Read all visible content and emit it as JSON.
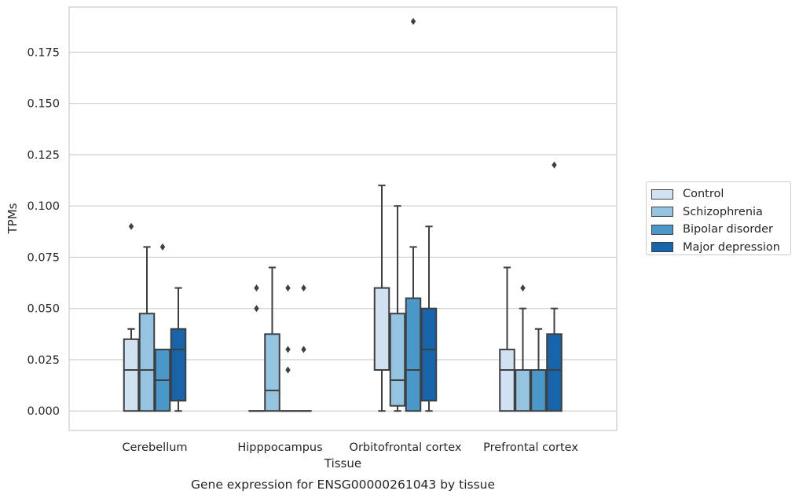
{
  "chart_data": {
    "type": "box",
    "caption": "Gene expression for ENSG00000261043 by tissue",
    "xlabel": "Tissue",
    "ylabel": "TPMs",
    "ylim": [
      -0.0095,
      0.197
    ],
    "yticks": [
      0.0,
      0.025,
      0.05,
      0.075,
      0.1,
      0.125,
      0.15,
      0.175
    ],
    "ytick_labels": [
      "0.000",
      "0.025",
      "0.050",
      "0.075",
      "0.100",
      "0.125",
      "0.150",
      "0.175"
    ],
    "grid": "horizontal",
    "legend_position": "right",
    "categories": [
      "Cerebellum",
      "Hipppocampus",
      "Orbitofrontal cortex",
      "Prefrontal cortex"
    ],
    "series": [
      {
        "name": "Control",
        "color": "#d0e1f2",
        "boxes": [
          {
            "whislo": 0.0,
            "q1": 0.0,
            "med": 0.02,
            "q3": 0.035,
            "whishi": 0.04,
            "fliers": [
              0.09
            ]
          },
          {
            "whislo": 0.0,
            "q1": 0.0,
            "med": 0.0,
            "q3": 0.0,
            "whishi": 0.0,
            "fliers": [
              0.05,
              0.06
            ]
          },
          {
            "whislo": 0.0,
            "q1": 0.02,
            "med": 0.02,
            "q3": 0.06,
            "whishi": 0.11,
            "fliers": []
          },
          {
            "whislo": 0.0,
            "q1": 0.0,
            "med": 0.02,
            "q3": 0.03,
            "whishi": 0.07,
            "fliers": []
          }
        ]
      },
      {
        "name": "Schizophrenia",
        "color": "#94c4df",
        "boxes": [
          {
            "whislo": 0.0,
            "q1": 0.0,
            "med": 0.02,
            "q3": 0.0475,
            "whishi": 0.08,
            "fliers": []
          },
          {
            "whislo": 0.0,
            "q1": 0.0,
            "med": 0.01,
            "q3": 0.0375,
            "whishi": 0.07,
            "fliers": []
          },
          {
            "whislo": 0.0,
            "q1": 0.0025,
            "med": 0.015,
            "q3": 0.0475,
            "whishi": 0.1,
            "fliers": []
          },
          {
            "whislo": 0.0,
            "q1": 0.0,
            "med": 0.02,
            "q3": 0.02,
            "whishi": 0.05,
            "fliers": [
              0.06
            ]
          }
        ]
      },
      {
        "name": "Bipolar disorder",
        "color": "#4a98c9",
        "boxes": [
          {
            "whislo": 0.0,
            "q1": 0.0,
            "med": 0.015,
            "q3": 0.03,
            "whishi": 0.03,
            "fliers": [
              0.08
            ]
          },
          {
            "whislo": 0.0,
            "q1": 0.0,
            "med": 0.0,
            "q3": 0.0,
            "whishi": 0.0,
            "fliers": [
              0.02,
              0.03,
              0.06
            ]
          },
          {
            "whislo": 0.0,
            "q1": 0.0,
            "med": 0.02,
            "q3": 0.055,
            "whishi": 0.08,
            "fliers": [
              0.19
            ]
          },
          {
            "whislo": 0.0,
            "q1": 0.0,
            "med": 0.02,
            "q3": 0.02,
            "whishi": 0.04,
            "fliers": []
          }
        ]
      },
      {
        "name": "Major depression",
        "color": "#1764ab",
        "boxes": [
          {
            "whislo": 0.0,
            "q1": 0.005,
            "med": 0.03,
            "q3": 0.04,
            "whishi": 0.06,
            "fliers": []
          },
          {
            "whislo": 0.0,
            "q1": 0.0,
            "med": 0.0,
            "q3": 0.0,
            "whishi": 0.0,
            "fliers": [
              0.03,
              0.06
            ]
          },
          {
            "whislo": 0.0,
            "q1": 0.005,
            "med": 0.03,
            "q3": 0.05,
            "whishi": 0.09,
            "fliers": []
          },
          {
            "whislo": 0.0,
            "q1": 0.0,
            "med": 0.02,
            "q3": 0.0375,
            "whishi": 0.05,
            "fliers": [
              0.12
            ]
          }
        ]
      }
    ]
  }
}
